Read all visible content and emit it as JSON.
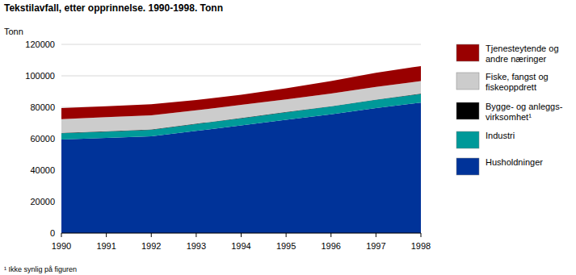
{
  "chart_data": {
    "type": "area",
    "title": "Tekstilavfall, etter opprinnelse. 1990-1998. Tonn",
    "y_label": "Tonn",
    "note": "¹ Ikke synlig på figuren",
    "stacked": true,
    "grid": true,
    "legend": "right",
    "x": [
      1990,
      1991,
      1992,
      1993,
      1994,
      1995,
      1996,
      1997,
      1998
    ],
    "xlim": [
      1990,
      1998
    ],
    "xticks": [
      1990,
      1991,
      1992,
      1993,
      1994,
      1995,
      1996,
      1997,
      1998
    ],
    "ylim": [
      0,
      120000
    ],
    "yticks": [
      0,
      20000,
      40000,
      60000,
      80000,
      100000,
      120000
    ],
    "series": [
      {
        "name": "Husholdninger",
        "color": "#003399",
        "values": [
          59500,
          60500,
          61500,
          65000,
          68500,
          72000,
          75500,
          79500,
          83000
        ]
      },
      {
        "name": "Industri",
        "color": "#009999",
        "values": [
          4000,
          4000,
          4200,
          4400,
          4500,
          4800,
          5000,
          5200,
          5500
        ]
      },
      {
        "name": "Bygge- og anleggs-virksomhet¹",
        "color": "#000000",
        "values": [
          200,
          200,
          200,
          200,
          200,
          200,
          200,
          200,
          200
        ]
      },
      {
        "name": "Fiske, fangst og fiskeoppdrett",
        "color": "#cccccc",
        "values": [
          8800,
          9000,
          9000,
          8500,
          8300,
          8000,
          8000,
          8000,
          8000
        ]
      },
      {
        "name": "Tjenesteytende og andre næringer",
        "color": "#990000",
        "values": [
          7000,
          7000,
          7000,
          6500,
          6500,
          7000,
          8000,
          9000,
          9500
        ]
      }
    ]
  }
}
